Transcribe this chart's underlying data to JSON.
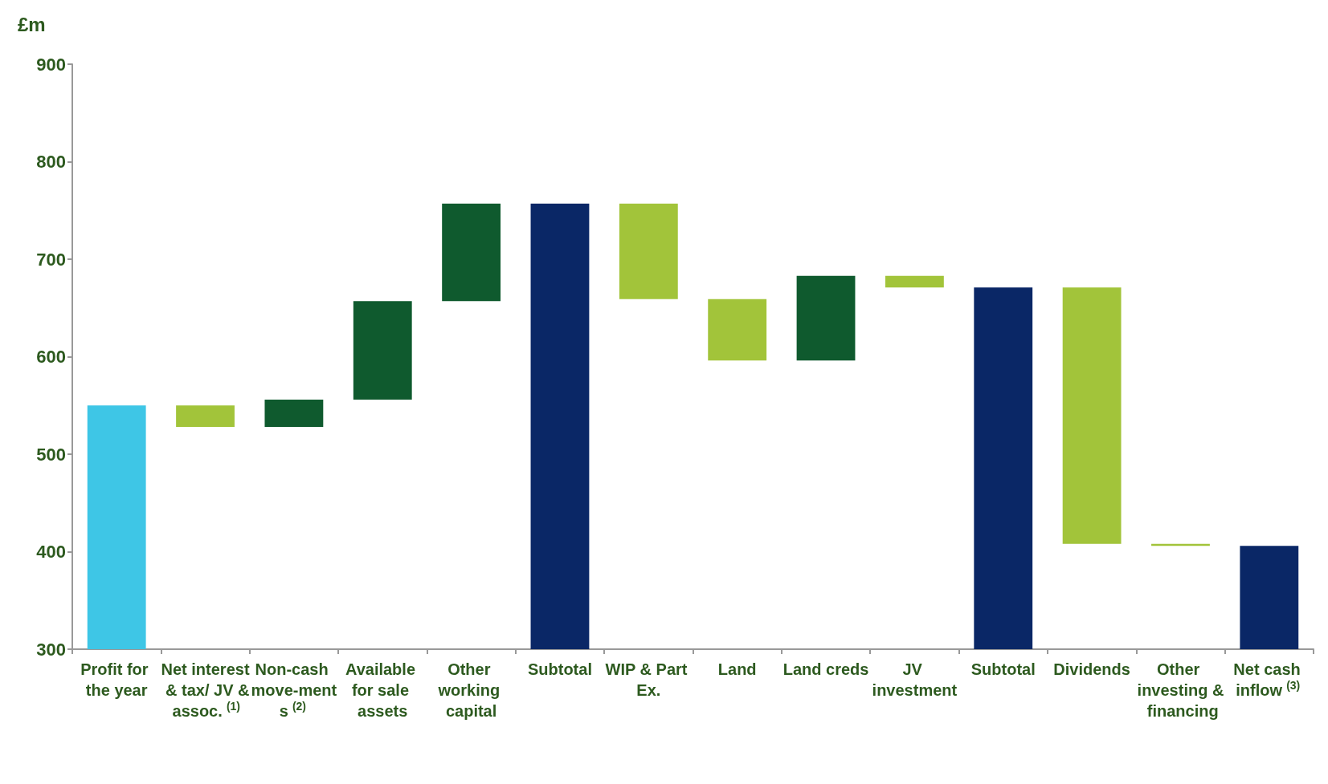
{
  "chart_data": {
    "type": "bar",
    "ylabel": "£m",
    "categories": [
      "Profit for the year",
      "Net interest & tax/ JV & assoc.$^{(1)}$",
      "Non-cash move-ments$^{(2)}$",
      "Available for sale assets",
      "Other working capital",
      "Subtotal",
      "WIP & Part Ex.",
      "Land",
      "Land creds",
      "JV investment",
      "Subtotal",
      "Dividends",
      "Other investing & financing",
      "Net cash inflow$^{(3)}$"
    ],
    "base": [
      0,
      550,
      528,
      556,
      657,
      0,
      757,
      659,
      596,
      683,
      0,
      671,
      408,
      0
    ],
    "values": [
      550,
      -22,
      28,
      101,
      100,
      757,
      -98,
      -63,
      87,
      -12,
      671,
      -263,
      -2,
      406
    ],
    "colors": [
      "#3ec6e6",
      "#a2c43a",
      "#0f5a2e",
      "#0f5a2e",
      "#0f5a2e",
      "#0a2766",
      "#a2c43a",
      "#a2c43a",
      "#0f5a2e",
      "#a2c43a",
      "#0a2766",
      "#a2c43a",
      "#a2c43a",
      "#0a2766"
    ],
    "ylim": [
      300,
      900
    ],
    "yticks": [
      300,
      400,
      500,
      600,
      700,
      800,
      900
    ],
    "grid": false
  }
}
